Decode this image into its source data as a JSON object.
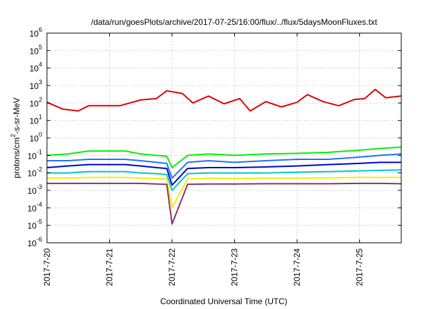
{
  "chart_data": {
    "type": "line",
    "title": "/data/run/goesPlots/archive/2017-07-25/16:00/flux/../flux/5daysMoonFluxes.txt",
    "xlabel": "Coordinated Universal Time (UTC)",
    "ylabel": {
      "prefix": "protons/cm",
      "sup": "2",
      "suffix": "-s-sr-MeV"
    },
    "x_scale": "time",
    "x_range": [
      "2017-07-20T00:00",
      "2017-07-25T16:00"
    ],
    "x_ticks": [
      "2017-7-20",
      "2017-7-21",
      "2017-7-22",
      "2017-7-23",
      "2017-7-24",
      "2017-7-25"
    ],
    "y_scale": "log",
    "y_range": [
      1e-06,
      1000000.0
    ],
    "y_ticks": [
      {
        "base": "10",
        "exp": "-6",
        "value": 1e-06
      },
      {
        "base": "10",
        "exp": "-5",
        "value": 1e-05
      },
      {
        "base": "10",
        "exp": "-4",
        "value": 0.0001
      },
      {
        "base": "10",
        "exp": "-3",
        "value": 0.001
      },
      {
        "base": "10",
        "exp": "-2",
        "value": 0.01
      },
      {
        "base": "10",
        "exp": "-1",
        "value": 0.1
      },
      {
        "base": "10",
        "exp": "0",
        "value": 1
      },
      {
        "base": "10",
        "exp": "1",
        "value": 10
      },
      {
        "base": "10",
        "exp": "2",
        "value": 100
      },
      {
        "base": "10",
        "exp": "3",
        "value": 1000
      },
      {
        "base": "10",
        "exp": "4",
        "value": 10000
      },
      {
        "base": "10",
        "exp": "5",
        "value": 100000
      },
      {
        "base": "10",
        "exp": "6",
        "value": 1000000
      }
    ],
    "grid": true,
    "legend": "none",
    "series": [
      {
        "color": "#e00000",
        "x": [
          "2017-07-20T00:00",
          "2017-07-20T06:00",
          "2017-07-20T12:00",
          "2017-07-20T16:00",
          "2017-07-21T04:00",
          "2017-07-21T12:00",
          "2017-07-21T18:00",
          "2017-07-21T22:00",
          "2017-07-22T04:00",
          "2017-07-22T08:00",
          "2017-07-22T14:00",
          "2017-07-22T20:00",
          "2017-07-23T02:00",
          "2017-07-23T06:00",
          "2017-07-23T12:00",
          "2017-07-23T18:00",
          "2017-07-24T00:00",
          "2017-07-24T04:00",
          "2017-07-24T10:00",
          "2017-07-24T16:00",
          "2017-07-24T22:00",
          "2017-07-25T02:00",
          "2017-07-25T06:00",
          "2017-07-25T10:00",
          "2017-07-25T16:00"
        ],
        "values": [
          110,
          45,
          35,
          70,
          70,
          150,
          180,
          500,
          350,
          100,
          250,
          90,
          180,
          35,
          120,
          60,
          110,
          300,
          120,
          70,
          160,
          180,
          600,
          200,
          250
        ]
      },
      {
        "color": "#00f000",
        "x": [
          "2017-07-20T00:00",
          "2017-07-20T08:00",
          "2017-07-20T16:00",
          "2017-07-21T06:00",
          "2017-07-21T12:00",
          "2017-07-21T18:00",
          "2017-07-21T22:00",
          "2017-07-22T00:00",
          "2017-07-22T06:00",
          "2017-07-22T14:00",
          "2017-07-23T00:00",
          "2017-07-23T12:00",
          "2017-07-24T00:00",
          "2017-07-24T12:00",
          "2017-07-25T00:00",
          "2017-07-25T08:00",
          "2017-07-25T16:00"
        ],
        "values": [
          0.1,
          0.12,
          0.18,
          0.18,
          0.12,
          0.1,
          0.09,
          0.02,
          0.1,
          0.12,
          0.1,
          0.12,
          0.13,
          0.15,
          0.2,
          0.25,
          0.3
        ]
      },
      {
        "color": "#1e6fff",
        "x": [
          "2017-07-20T00:00",
          "2017-07-20T08:00",
          "2017-07-20T16:00",
          "2017-07-21T06:00",
          "2017-07-21T12:00",
          "2017-07-21T18:00",
          "2017-07-21T22:00",
          "2017-07-22T00:00",
          "2017-07-22T06:00",
          "2017-07-22T14:00",
          "2017-07-23T00:00",
          "2017-07-23T12:00",
          "2017-07-24T00:00",
          "2017-07-24T12:00",
          "2017-07-25T00:00",
          "2017-07-25T08:00",
          "2017-07-25T16:00"
        ],
        "values": [
          0.05,
          0.05,
          0.06,
          0.06,
          0.05,
          0.04,
          0.035,
          0.005,
          0.04,
          0.05,
          0.04,
          0.05,
          0.06,
          0.06,
          0.08,
          0.1,
          0.12
        ]
      },
      {
        "color": "#0000c8",
        "x": [
          "2017-07-20T00:00",
          "2017-07-20T08:00",
          "2017-07-20T16:00",
          "2017-07-21T06:00",
          "2017-07-21T12:00",
          "2017-07-21T18:00",
          "2017-07-21T22:00",
          "2017-07-22T00:00",
          "2017-07-22T06:00",
          "2017-07-22T14:00",
          "2017-07-23T00:00",
          "2017-07-23T12:00",
          "2017-07-24T00:00",
          "2017-07-24T12:00",
          "2017-07-25T00:00",
          "2017-07-25T08:00",
          "2017-07-25T16:00"
        ],
        "values": [
          0.02,
          0.025,
          0.03,
          0.03,
          0.025,
          0.02,
          0.018,
          0.002,
          0.018,
          0.02,
          0.02,
          0.022,
          0.025,
          0.03,
          0.035,
          0.04,
          0.04
        ]
      },
      {
        "color": "#00c8c8",
        "x": [
          "2017-07-20T00:00",
          "2017-07-20T08:00",
          "2017-07-20T16:00",
          "2017-07-21T06:00",
          "2017-07-21T12:00",
          "2017-07-21T18:00",
          "2017-07-21T22:00",
          "2017-07-22T00:00",
          "2017-07-22T06:00",
          "2017-07-22T14:00",
          "2017-07-23T00:00",
          "2017-07-23T12:00",
          "2017-07-24T00:00",
          "2017-07-24T12:00",
          "2017-07-25T00:00",
          "2017-07-25T08:00",
          "2017-07-25T16:00"
        ],
        "values": [
          0.01,
          0.01,
          0.012,
          0.012,
          0.01,
          0.009,
          0.008,
          0.001,
          0.009,
          0.01,
          0.01,
          0.01,
          0.011,
          0.012,
          0.013,
          0.014,
          0.015
        ]
      },
      {
        "color": "#f0f000",
        "x": [
          "2017-07-20T00:00",
          "2017-07-20T08:00",
          "2017-07-20T16:00",
          "2017-07-21T06:00",
          "2017-07-21T12:00",
          "2017-07-21T18:00",
          "2017-07-21T22:00",
          "2017-07-22T00:00",
          "2017-07-22T06:00",
          "2017-07-22T14:00",
          "2017-07-23T00:00",
          "2017-07-23T12:00",
          "2017-07-24T00:00",
          "2017-07-24T12:00",
          "2017-07-25T00:00",
          "2017-07-25T08:00",
          "2017-07-25T16:00"
        ],
        "values": [
          0.005,
          0.005,
          0.0055,
          0.0055,
          0.005,
          0.0048,
          0.0045,
          0.0001,
          0.0045,
          0.005,
          0.0048,
          0.005,
          0.005,
          0.0052,
          0.0055,
          0.0055,
          0.0055
        ]
      },
      {
        "color": "#8b2f6b",
        "x": [
          "2017-07-20T00:00",
          "2017-07-20T08:00",
          "2017-07-20T16:00",
          "2017-07-21T06:00",
          "2017-07-21T12:00",
          "2017-07-21T18:00",
          "2017-07-21T22:00",
          "2017-07-22T00:00",
          "2017-07-22T06:00",
          "2017-07-22T14:00",
          "2017-07-23T00:00",
          "2017-07-23T12:00",
          "2017-07-24T00:00",
          "2017-07-24T12:00",
          "2017-07-25T00:00",
          "2017-07-25T08:00",
          "2017-07-25T16:00"
        ],
        "values": [
          0.0025,
          0.0025,
          0.0025,
          0.0025,
          0.0025,
          0.0023,
          0.0022,
          1.2e-05,
          0.0022,
          0.0023,
          0.0023,
          0.0024,
          0.0024,
          0.0024,
          0.0025,
          0.0025,
          0.0024
        ]
      }
    ]
  }
}
